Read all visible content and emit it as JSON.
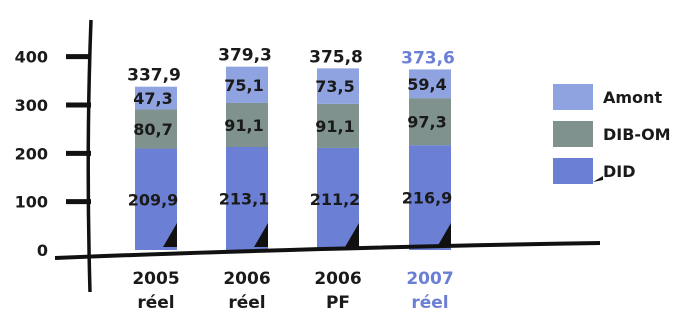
{
  "chart_data": {
    "type": "bar",
    "stacked": true,
    "categories": [
      [
        "2005",
        "réel"
      ],
      [
        "2006",
        "réel"
      ],
      [
        "2006",
        "PF"
      ],
      [
        "2007",
        "réel"
      ]
    ],
    "highlight_category_index": 3,
    "series": [
      {
        "name": "DID",
        "color": "#6b7fd4",
        "values": [
          209.9,
          213.1,
          211.2,
          216.9
        ]
      },
      {
        "name": "DIB-OM",
        "color": "#7f928d",
        "values": [
          80.7,
          91.1,
          91.1,
          97.3
        ]
      },
      {
        "name": "Amont",
        "color": "#8fa3e0",
        "values": [
          47.3,
          75.1,
          73.5,
          59.4
        ]
      }
    ],
    "series_labels": [
      [
        "209,9",
        "213,1",
        "211,2",
        "216,9"
      ],
      [
        "80,7",
        "91,1",
        "91,1",
        "97,3"
      ],
      [
        "47,3",
        "75,1",
        "73,5",
        "59,4"
      ]
    ],
    "totals": [
      "337,9",
      "379,3",
      "375,8",
      "373,6"
    ],
    "yticks": [
      {
        "value": 0,
        "label": "0"
      },
      {
        "value": 100,
        "label": "100"
      },
      {
        "value": 200,
        "label": "200"
      },
      {
        "value": 300,
        "label": "300"
      },
      {
        "value": 400,
        "label": "400"
      }
    ],
    "ylim": [
      0,
      420
    ],
    "legend_position": "right",
    "legend_order": [
      2,
      1,
      0
    ],
    "highlight_color": "#6b7fd4",
    "text_color": "#1a1a1a",
    "axis_color": "#111111"
  }
}
